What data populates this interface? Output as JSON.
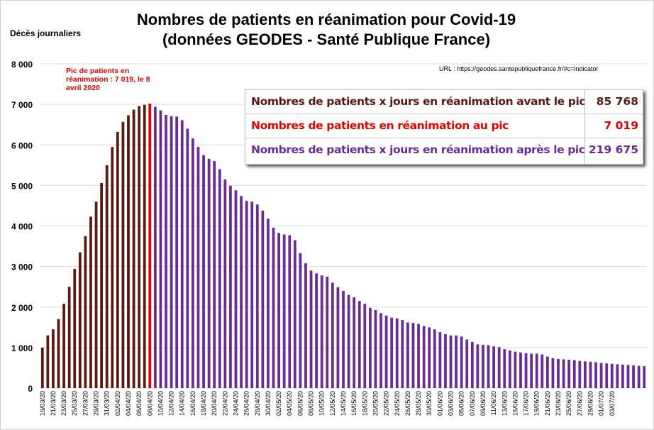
{
  "title_line1": "Nombres de patients en réanimation pour Covid-19",
  "title_line2": "(données GEODES - Santé Publique France)",
  "url_text": "URL : https://geodes.santepubliquefrance.fr/#c=indicator",
  "annotation": "Pic de patients en réanimation : 7 019, le 8 avril 2020",
  "table": [
    {
      "label": "Nombres de patients x jours en réanimation avant le pic",
      "value": "85 768",
      "color": "#5a1a12"
    },
    {
      "label": "Nombres de patients en réanimation au pic",
      "value": "7 019",
      "color": "#e00000"
    },
    {
      "label": "Nombres de patients x jours en réanimation après le pic",
      "value": "219 675",
      "color": "#6a2c91"
    }
  ],
  "colors": {
    "before_peak": "#5a1a12",
    "peak": "#e00000",
    "after_peak": "#6a2c91"
  },
  "chart_data": {
    "type": "bar",
    "title": "Nombres de patients en réanimation pour Covid-19 (données GEODES - Santé Publique France)",
    "ylabel": "Décès journaliers",
    "xlabel": "",
    "ylim": [
      0,
      8000
    ],
    "yticks": [
      "0",
      "1 000",
      "2 000",
      "3 000",
      "4 000",
      "5 000",
      "6 000",
      "7 000",
      "8 000"
    ],
    "grid": true,
    "start_date": "19/03/20",
    "peak_date": "08/04/20",
    "xtick_labels": [
      "19/03/20",
      "21/03/20",
      "23/03/20",
      "25/03/20",
      "27/03/20",
      "29/03/20",
      "31/03/20",
      "02/04/20",
      "04/04/20",
      "06/04/20",
      "08/04/20",
      "10/04/20",
      "12/04/20",
      "14/04/20",
      "16/04/20",
      "18/04/20",
      "20/04/20",
      "22/04/20",
      "24/04/20",
      "26/04/20",
      "28/04/20",
      "30/04/20",
      "02/05/20",
      "04/05/20",
      "06/05/20",
      "08/05/20",
      "10/05/20",
      "12/05/20",
      "14/05/20",
      "16/05/20",
      "18/05/20",
      "20/05/20",
      "22/05/20",
      "24/05/20",
      "26/05/20",
      "28/05/20",
      "30/05/20",
      "01/06/20",
      "03/06/20",
      "05/06/20",
      "07/06/20",
      "09/06/20",
      "11/06/20",
      "13/06/20",
      "15/06/20",
      "17/06/20",
      "19/06/20",
      "21/06/20",
      "23/06/20",
      "25/06/20",
      "27/06/20",
      "29/06/20",
      "01/07/20",
      "03/07/20"
    ],
    "values": [
      1000,
      1300,
      1450,
      1700,
      2080,
      2500,
      2940,
      3350,
      3750,
      4230,
      4600,
      5060,
      5500,
      5950,
      6320,
      6570,
      6730,
      6870,
      6960,
      6990,
      7019,
      6940,
      6850,
      6740,
      6710,
      6700,
      6610,
      6400,
      6160,
      5950,
      5750,
      5660,
      5600,
      5400,
      5150,
      4990,
      4880,
      4740,
      4620,
      4600,
      4530,
      4380,
      4180,
      3960,
      3830,
      3790,
      3770,
      3650,
      3330,
      3080,
      2900,
      2830,
      2780,
      2750,
      2600,
      2490,
      2400,
      2300,
      2240,
      2150,
      2080,
      1980,
      1930,
      1850,
      1790,
      1740,
      1720,
      1680,
      1620,
      1610,
      1580,
      1530,
      1500,
      1450,
      1380,
      1330,
      1300,
      1300,
      1270,
      1200,
      1140,
      1080,
      1070,
      1060,
      1030,
      1010,
      960,
      930,
      900,
      880,
      860,
      850,
      850,
      830,
      780,
      740,
      720,
      710,
      700,
      690,
      670,
      660,
      650,
      640,
      620,
      610,
      600,
      590,
      580,
      570,
      560,
      550,
      540
    ]
  }
}
